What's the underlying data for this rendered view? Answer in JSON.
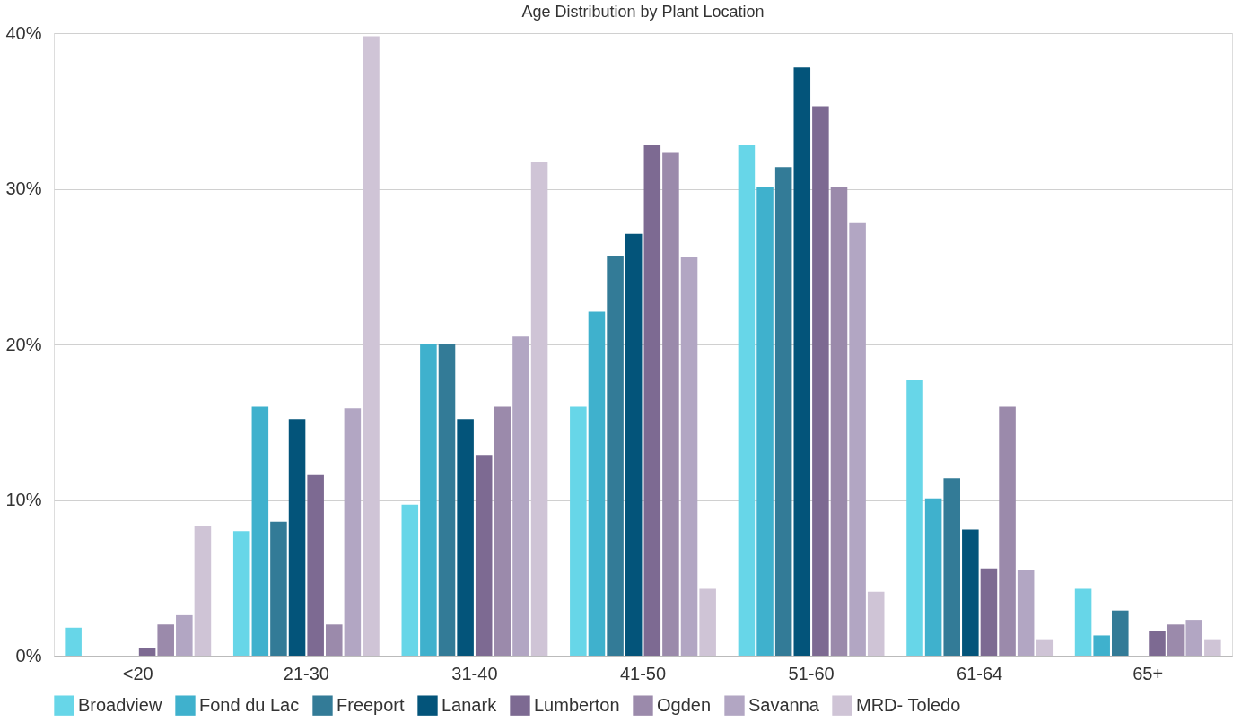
{
  "chart_data": {
    "type": "bar",
    "title": "Age Distribution by Plant Location",
    "categories": [
      "<20",
      "21-30",
      "31-40",
      "41-50",
      "51-60",
      "61-64",
      "65+"
    ],
    "series": [
      {
        "name": "Broadview",
        "color": "#67d6e8",
        "values": [
          1.8,
          8.0,
          9.7,
          16.0,
          32.8,
          17.7,
          4.3
        ]
      },
      {
        "name": "Fond du Lac",
        "color": "#3fb1cd",
        "values": [
          0,
          16.0,
          20.0,
          22.1,
          30.1,
          10.1,
          1.3
        ]
      },
      {
        "name": "Freeport",
        "color": "#337b97",
        "values": [
          0,
          8.6,
          20.0,
          25.7,
          31.4,
          11.4,
          2.9
        ]
      },
      {
        "name": "Lanark",
        "color": "#03547a",
        "values": [
          0,
          15.2,
          15.2,
          27.1,
          37.8,
          8.1,
          0
        ]
      },
      {
        "name": "Lumberton",
        "color": "#7d6a92",
        "values": [
          0.5,
          11.6,
          12.9,
          32.8,
          35.3,
          5.6,
          1.6
        ]
      },
      {
        "name": "Ogden",
        "color": "#9b8aab",
        "values": [
          2.0,
          2.0,
          16.0,
          32.3,
          30.1,
          16.0,
          2.0
        ]
      },
      {
        "name": "Savanna",
        "color": "#b2a6c3",
        "values": [
          2.6,
          15.9,
          20.5,
          25.6,
          27.8,
          5.5,
          2.3
        ]
      },
      {
        "name": "MRD- Toledo",
        "color": "#cfc4d6",
        "values": [
          8.3,
          39.8,
          31.7,
          4.3,
          4.1,
          1.0,
          1.0
        ]
      }
    ],
    "ylim": [
      0,
      40
    ],
    "yticks": [
      {
        "value": 0,
        "label": "0%"
      },
      {
        "value": 10,
        "label": "10%"
      },
      {
        "value": 20,
        "label": "20%"
      },
      {
        "value": 30,
        "label": "30%"
      },
      {
        "value": 40,
        "label": "40%"
      }
    ],
    "grid": "y",
    "legend": "bottom left"
  }
}
